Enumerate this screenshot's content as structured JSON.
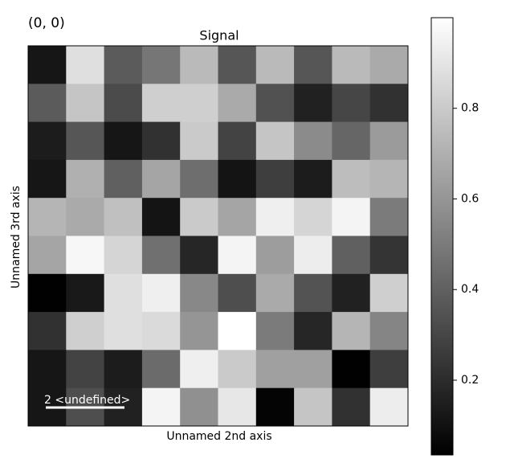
{
  "chart_data": {
    "type": "heatmap",
    "title": "Signal",
    "corner_label": "(0, 0)",
    "scale_bar_label": "2 <undefined>",
    "x_label": "Unnamed 2nd axis",
    "y_label": "Unnamed 3rd axis",
    "cmap": "gray",
    "clim": [
      0.035,
      1.0
    ],
    "colorbar_ticks": [
      0.2,
      0.4,
      0.6,
      0.8
    ],
    "values": [
      [
        0.12,
        0.88,
        0.38,
        0.48,
        0.74,
        0.36,
        0.74,
        0.36,
        0.74,
        0.68
      ],
      [
        0.38,
        0.78,
        0.32,
        0.82,
        0.82,
        0.68,
        0.34,
        0.16,
        0.3,
        0.22
      ],
      [
        0.14,
        0.36,
        0.12,
        0.22,
        0.8,
        0.29,
        0.78,
        0.56,
        0.42,
        0.62
      ],
      [
        0.12,
        0.7,
        0.4,
        0.66,
        0.45,
        0.11,
        0.27,
        0.14,
        0.75,
        0.72
      ],
      [
        0.72,
        0.68,
        0.76,
        0.11,
        0.8,
        0.66,
        0.94,
        0.84,
        0.96,
        0.5
      ],
      [
        0.66,
        0.97,
        0.84,
        0.46,
        0.18,
        0.96,
        0.63,
        0.93,
        0.4,
        0.23
      ],
      [
        0.04,
        0.13,
        0.88,
        0.94,
        0.55,
        0.33,
        0.68,
        0.35,
        0.16,
        0.82
      ],
      [
        0.22,
        0.82,
        0.88,
        0.86,
        0.6,
        1.0,
        0.5,
        0.18,
        0.72,
        0.54
      ],
      [
        0.12,
        0.29,
        0.14,
        0.44,
        0.94,
        0.8,
        0.64,
        0.64,
        0.04,
        0.27
      ],
      [
        0.12,
        0.33,
        0.16,
        0.96,
        0.58,
        0.91,
        0.05,
        0.78,
        0.22,
        0.93
      ]
    ]
  }
}
